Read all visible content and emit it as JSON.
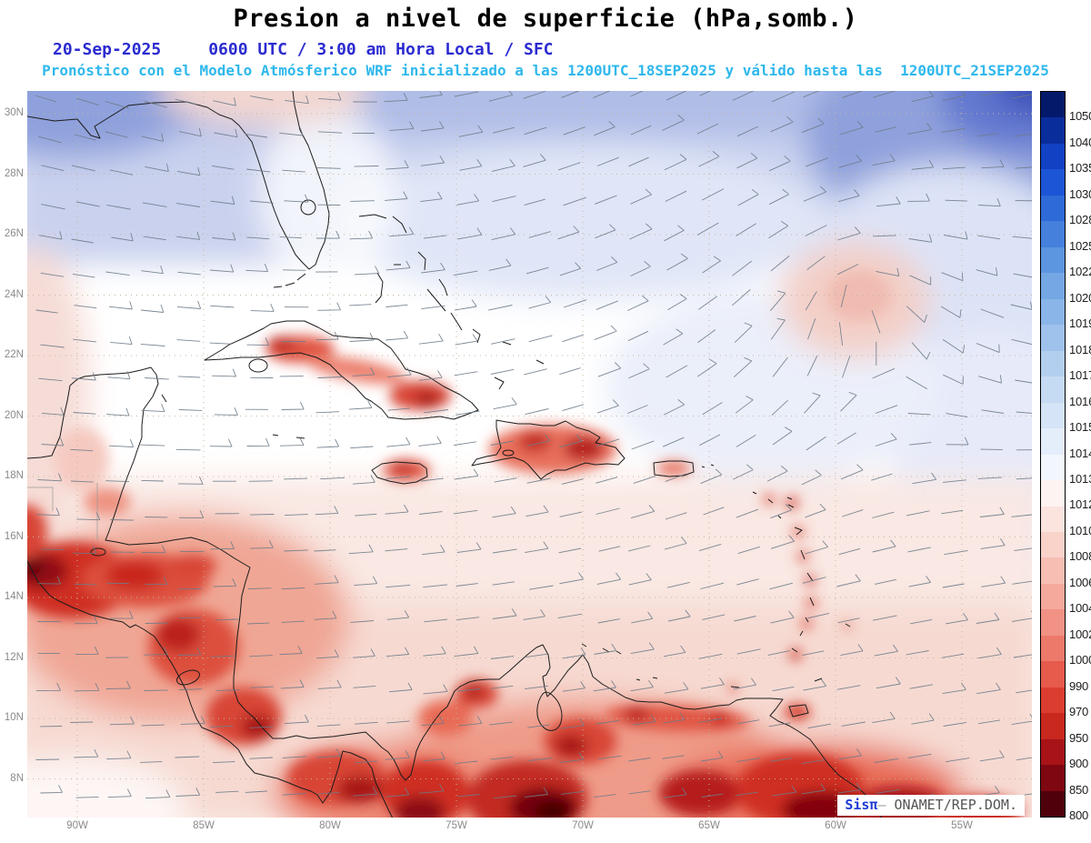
{
  "title": "Presion a nivel de superficie (hPa,somb.)",
  "header": {
    "date": "20-Sep-2025",
    "time": "0600 UTC / 3:00 am Hora Local / SFC",
    "forecast_line": "Pronóstico con el Modelo Atmósferico WRF inicializado a las 1200UTC_18SEP2025 y válido hasta las  1200UTC_21SEP2025"
  },
  "map": {
    "lat_labels": [
      "30N",
      "28N",
      "26N",
      "24N",
      "22N",
      "20N",
      "18N",
      "16N",
      "14N",
      "12N",
      "10N",
      "8N"
    ],
    "lon_labels": [
      "90W",
      "85W",
      "80W",
      "75W",
      "70W",
      "65W",
      "60W",
      "55W"
    ]
  },
  "colorbar": {
    "unit": "hPa",
    "labels": [
      "1050",
      "1040",
      "1035",
      "1030",
      "1028",
      "1025",
      "1022",
      "1020",
      "1019",
      "1018",
      "1017",
      "1016",
      "1015",
      "1014",
      "1013",
      "1012",
      "1010",
      "1008",
      "1006",
      "1004",
      "1002",
      "1000",
      "990",
      "970",
      "950",
      "900",
      "850",
      "800"
    ],
    "colors": [
      "#05196b",
      "#0a2d9c",
      "#1241c4",
      "#1c55d6",
      "#2e6ad8",
      "#4480dc",
      "#5c95e0",
      "#74a7e4",
      "#8ab5e8",
      "#9fc2ec",
      "#b3cff0",
      "#c5daf3",
      "#d5e4f6",
      "#e4edfa",
      "#f2f7fd",
      "#fdf4f2",
      "#fbe3de",
      "#f9d2ca",
      "#f7beb3",
      "#f4a99c",
      "#f19284",
      "#ed796a",
      "#e65b4c",
      "#dc3d31",
      "#c9281f",
      "#a81318",
      "#7f0711",
      "#4f000a"
    ]
  },
  "credit": {
    "brand": "Sisπ",
    "sep": "— ",
    "org": "ONAMET/REP.DOM."
  },
  "colors": {
    "grid": "#c2b79e",
    "barb": "#6e7b88",
    "coastline": "#1c1c1c",
    "subtitle_blue": "#2b2bd0",
    "subtitle_cyan": "#2fb8ec",
    "axis_label": "#8a8a8a"
  }
}
